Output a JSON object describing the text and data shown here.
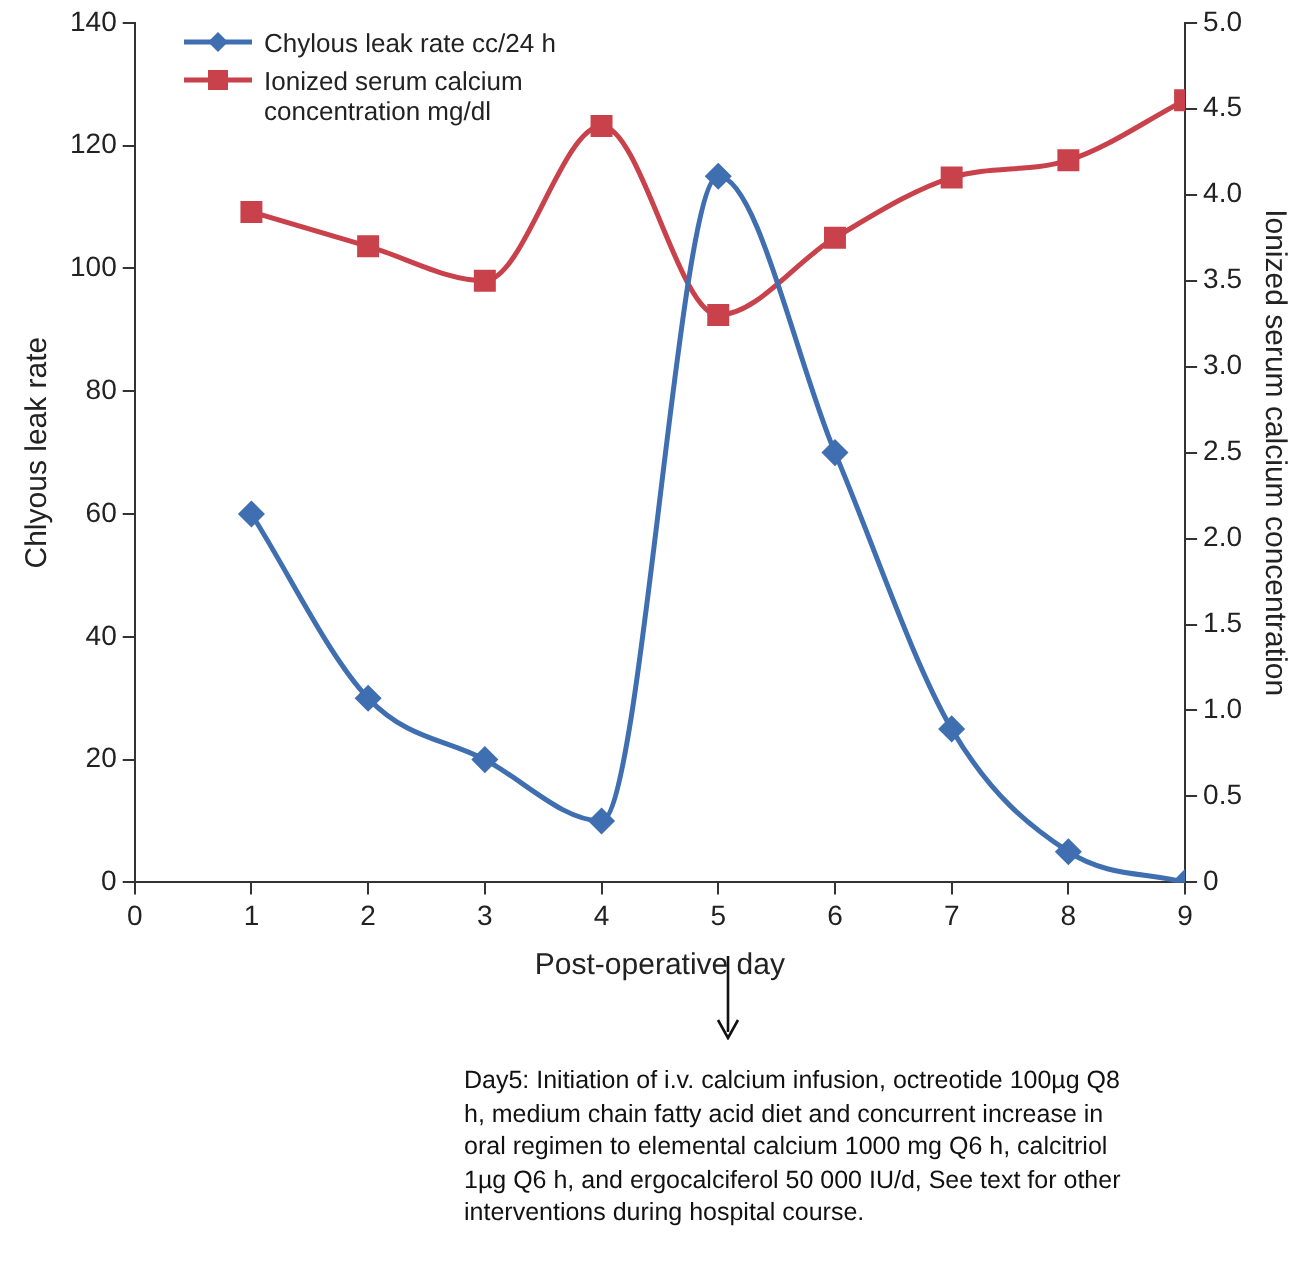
{
  "chart_data": {
    "type": "line",
    "xlabel": "Post-operative day",
    "ylabel": "Chlyous leak rate",
    "y2label": "Ionized serum calcium concentration",
    "x": [
      1,
      2,
      3,
      4,
      5,
      6,
      7,
      8,
      9
    ],
    "series": [
      {
        "name": "Chylous leak rate cc/24 h",
        "color": "#3f6fb0",
        "marker": "diamond",
        "values": [
          60,
          30,
          20,
          10,
          115,
          70,
          25,
          5,
          0
        ]
      },
      {
        "name": "Ionized serum calcium concentration mg/dl",
        "color": "#c8414b",
        "marker": "square",
        "axis": "y2",
        "values": [
          3.9,
          3.7,
          3.5,
          4.4,
          3.3,
          3.75,
          4.1,
          4.2,
          4.55
        ]
      }
    ],
    "xlim": [
      0,
      9
    ],
    "xticks": [
      0,
      1,
      2,
      3,
      4,
      5,
      6,
      7,
      8,
      9
    ],
    "ylim": [
      0,
      140
    ],
    "yticks": [
      0,
      20,
      40,
      60,
      80,
      100,
      120,
      140
    ],
    "y2lim": [
      0,
      5
    ],
    "y2ticks": [
      {
        "value": 0,
        "label": "0"
      },
      {
        "value": 0.5,
        "label": "0.5"
      },
      {
        "value": 1,
        "label": "1.0"
      },
      {
        "value": 1.5,
        "label": "1.5"
      },
      {
        "value": 2,
        "label": "2.0"
      },
      {
        "value": 2.5,
        "label": "2.5"
      },
      {
        "value": 3,
        "label": "3.0"
      },
      {
        "value": 3.5,
        "label": "3.5"
      },
      {
        "value": 4,
        "label": "4.0"
      },
      {
        "value": 4.5,
        "label": "4.5"
      },
      {
        "value": 5,
        "label": "5.0"
      }
    ],
    "grid": false,
    "legend": "top left",
    "line_style": "solid",
    "annotations": [
      "Day5: Initiation of i.v. calcium infusion, octreotide 100µg Q8 h, medium chain fatty acid diet and concurrent increase in oral regimen to elemental calcium 1000 mg Q6 h, calcitriol 1µg Q6 h, and ergocalciferol 50 000 IU/d, See text for other interventions during hospital course."
    ]
  }
}
